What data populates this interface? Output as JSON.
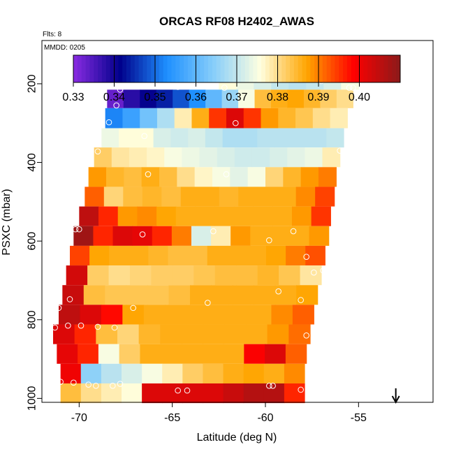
{
  "chart_data": {
    "type": "heatmap",
    "title": "ORCAS RF08 H2402_AWAS",
    "flights_note": "Flts: 8",
    "date_note": "MMDD: 0205",
    "xlabel": "Latitude (deg N)",
    "ylabel": "PSXC (mbar)",
    "xlim": [
      -72,
      -51
    ],
    "ylim": [
      1010,
      90
    ],
    "xticks": [
      -70,
      -65,
      -60,
      -55
    ],
    "xtick_labels": [
      "-70",
      "-65",
      "-60",
      "-55"
    ],
    "yticks": [
      200,
      400,
      600,
      800,
      1000
    ],
    "ytick_labels": [
      "200",
      "400",
      "600",
      "800",
      "1000"
    ],
    "colorbar": {
      "range": [
        0.33,
        0.41
      ],
      "ticks": [
        0.33,
        0.34,
        0.35,
        0.36,
        0.37,
        0.38,
        0.39,
        0.4
      ],
      "tick_labels": [
        "0.33",
        "0.34",
        "0.35",
        "0.36",
        "0.37",
        "0.38",
        "0.39",
        "0.40"
      ],
      "colors": [
        "#8a2be2",
        "#00008b",
        "#1e90ff",
        "#87cefa",
        "#ffffe0",
        "#ffa500",
        "#ff0000",
        "#8b1a1a"
      ]
    },
    "layers": [
      {
        "p_top": 190,
        "p_bot": 215,
        "x_start": -62.5,
        "x_end": -55.0,
        "values": [
          0.376,
          0.374,
          0.372,
          0.37,
          0.369,
          0.37,
          0.372,
          0.375
        ]
      },
      {
        "p_top": 215,
        "p_bot": 262,
        "x_start": -68.5,
        "x_end": -55.3,
        "values": [
          0.333,
          0.338,
          0.341,
          0.344,
          0.348,
          0.353,
          0.36,
          0.366,
          0.375,
          0.384,
          0.386,
          0.387,
          0.385,
          0.382,
          0.38
        ]
      },
      {
        "p_top": 262,
        "p_bot": 313,
        "x_start": -68.6,
        "x_end": -55.6,
        "values": [
          0.352,
          0.356,
          0.362,
          0.368,
          0.378,
          0.386,
          0.395,
          0.402,
          0.395,
          0.388,
          0.385,
          0.383,
          0.38,
          0.378
        ]
      },
      {
        "p_top": 313,
        "p_bot": 362,
        "x_start": -68.8,
        "x_end": -55.8,
        "values": [
          0.374,
          0.376,
          0.376,
          0.372,
          0.371,
          0.372,
          0.37,
          0.368,
          0.368,
          0.369,
          0.369,
          0.369,
          0.369,
          0.37
        ]
      },
      {
        "p_top": 362,
        "p_bot": 412,
        "x_start": -69.2,
        "x_end": -56.0,
        "values": [
          0.382,
          0.379,
          0.378,
          0.377,
          0.375,
          0.374,
          0.373,
          0.372,
          0.371,
          0.371,
          0.372,
          0.373,
          0.374,
          0.378
        ]
      },
      {
        "p_top": 412,
        "p_bot": 462,
        "x_start": -69.5,
        "x_end": -56.2,
        "values": [
          0.388,
          0.385,
          0.384,
          0.386,
          0.384,
          0.38,
          0.377,
          0.375,
          0.373,
          0.375,
          0.381,
          0.385,
          0.388,
          0.39
        ]
      },
      {
        "p_top": 462,
        "p_bot": 512,
        "x_start": -69.7,
        "x_end": -56.3,
        "values": [
          0.392,
          0.381,
          0.384,
          0.385,
          0.384,
          0.386,
          0.386,
          0.385,
          0.386,
          0.386,
          0.386,
          0.389,
          0.394
        ]
      },
      {
        "p_top": 512,
        "p_bot": 562,
        "x_start": -70.0,
        "x_end": -56.5,
        "values": [
          0.405,
          0.396,
          0.388,
          0.389,
          0.387,
          0.386,
          0.386,
          0.386,
          0.386,
          0.386,
          0.386,
          0.388,
          0.395
        ]
      },
      {
        "p_top": 562,
        "p_bot": 612,
        "x_start": -70.3,
        "x_end": -56.6,
        "values": [
          0.408,
          0.396,
          0.402,
          0.401,
          0.396,
          0.39,
          0.372,
          0.378,
          0.388,
          0.386,
          0.386,
          0.386,
          0.388
        ]
      },
      {
        "p_top": 612,
        "p_bot": 662,
        "x_start": -70.5,
        "x_end": -56.8,
        "values": [
          0.394,
          0.387,
          0.386,
          0.386,
          0.385,
          0.384,
          0.384,
          0.386,
          0.386,
          0.386,
          0.387,
          0.39,
          0.393
        ]
      },
      {
        "p_top": 662,
        "p_bot": 712,
        "x_start": -70.7,
        "x_end": -57.0,
        "values": [
          0.403,
          0.382,
          0.38,
          0.381,
          0.382,
          0.382,
          0.383,
          0.384,
          0.384,
          0.385,
          0.383,
          0.379
        ]
      },
      {
        "p_top": 712,
        "p_bot": 762,
        "x_start": -70.9,
        "x_end": -57.2,
        "values": [
          0.404,
          0.384,
          0.383,
          0.383,
          0.383,
          0.384,
          0.386,
          0.386,
          0.386,
          0.386,
          0.386,
          0.387
        ]
      },
      {
        "p_top": 762,
        "p_bot": 812,
        "x_start": -71.1,
        "x_end": -57.4,
        "values": [
          0.405,
          0.402,
          0.398,
          0.387,
          0.386,
          0.386,
          0.386,
          0.386,
          0.386,
          0.386,
          0.389,
          0.392
        ]
      },
      {
        "p_top": 812,
        "p_bot": 862,
        "x_start": -71.4,
        "x_end": -57.6,
        "values": [
          0.402,
          0.396,
          0.384,
          0.381,
          0.385,
          0.386,
          0.386,
          0.386,
          0.386,
          0.386,
          0.388,
          0.391
        ]
      },
      {
        "p_top": 862,
        "p_bot": 912,
        "x_start": -71.2,
        "x_end": -57.8,
        "values": [
          0.401,
          0.396,
          0.375,
          0.382,
          0.386,
          0.386,
          0.386,
          0.386,
          0.386,
          0.399,
          0.402,
          0.392
        ]
      },
      {
        "p_top": 912,
        "p_bot": 962,
        "x_start": -71.0,
        "x_end": -57.9,
        "values": [
          0.4,
          0.365,
          0.369,
          0.372,
          0.375,
          0.378,
          0.382,
          0.384,
          0.386,
          0.387,
          0.386,
          0.389
        ]
      },
      {
        "p_top": 962,
        "p_bot": 1012,
        "x_start": -71.0,
        "x_end": -57.9,
        "values": [
          0.384,
          0.38,
          0.378,
          0.376,
          0.402,
          0.402,
          0.402,
          0.402,
          0.404,
          0.406,
          0.406,
          0.396
        ]
      }
    ],
    "sample_points": [
      [
        -67.8,
        215
      ],
      [
        -68.0,
        255
      ],
      [
        -68.4,
        298
      ],
      [
        -64.7,
        208
      ],
      [
        -62.2,
        210
      ],
      [
        -61.6,
        300
      ],
      [
        -57.0,
        193
      ],
      [
        -55.5,
        210
      ],
      [
        -55.3,
        210
      ],
      [
        -66.5,
        333
      ],
      [
        -69.0,
        372
      ],
      [
        -56.0,
        370
      ],
      [
        -66.3,
        430
      ],
      [
        -62.1,
        430
      ],
      [
        -56.3,
        550
      ],
      [
        -70.2,
        570
      ],
      [
        -70.0,
        570
      ],
      [
        -66.6,
        583
      ],
      [
        -62.8,
        575
      ],
      [
        -59.8,
        598
      ],
      [
        -58.5,
        575
      ],
      [
        -57.8,
        640
      ],
      [
        -57.4,
        680
      ],
      [
        -56.9,
        675
      ],
      [
        -70.5,
        748
      ],
      [
        -71.1,
        770
      ],
      [
        -67.1,
        770
      ],
      [
        -63.1,
        757
      ],
      [
        -59.3,
        728
      ],
      [
        -58.1,
        750
      ],
      [
        -71.3,
        820
      ],
      [
        -70.6,
        815
      ],
      [
        -69.9,
        815
      ],
      [
        -69.0,
        818
      ],
      [
        -68.1,
        820
      ],
      [
        -57.8,
        840
      ],
      [
        -57.5,
        880
      ],
      [
        -57.3,
        910
      ],
      [
        -71.0,
        958
      ],
      [
        -70.3,
        960
      ],
      [
        -69.5,
        965
      ],
      [
        -69.1,
        968
      ],
      [
        -68.2,
        968
      ],
      [
        -67.8,
        963
      ],
      [
        -64.7,
        980
      ],
      [
        -64.2,
        980
      ],
      [
        -59.8,
        968
      ],
      [
        -59.6,
        968
      ],
      [
        -58.1,
        978
      ]
    ],
    "arrow_marker_latitude": -53.0
  }
}
